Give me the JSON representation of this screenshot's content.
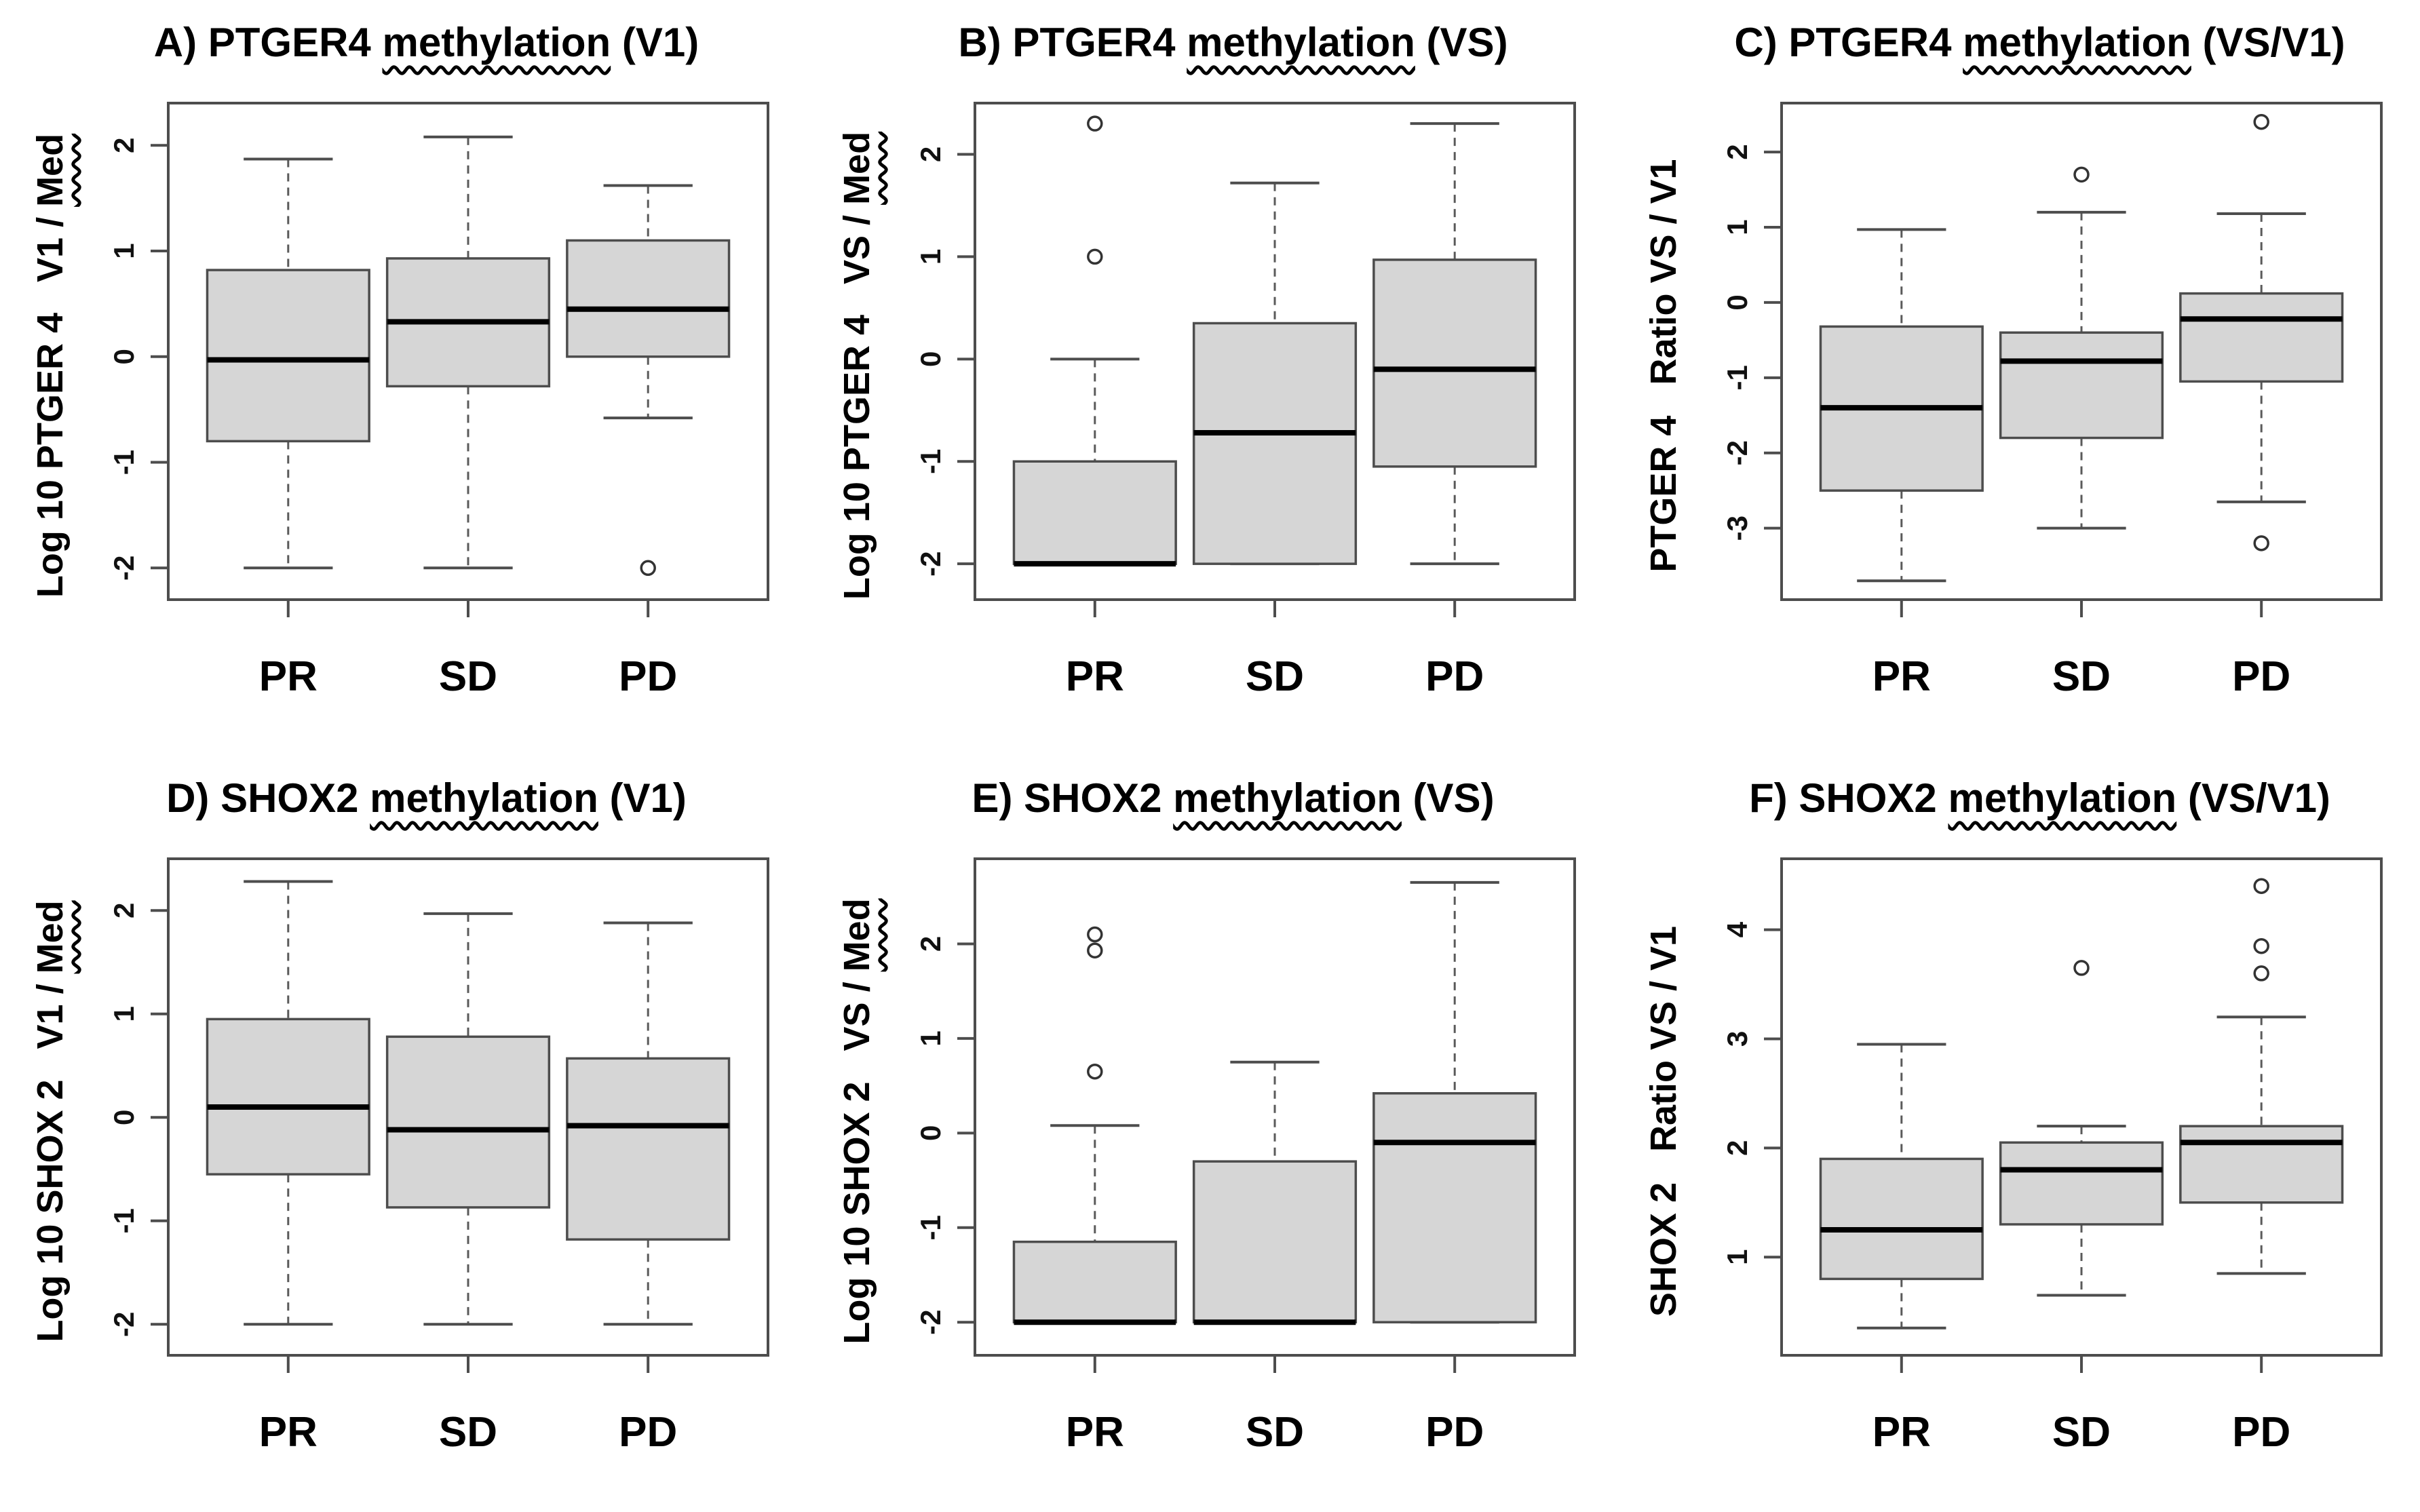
{
  "figure": {
    "type": "boxplot-grid",
    "rows": 2,
    "cols": 3,
    "background": "#ffffff",
    "colors": {
      "box_fill": "#d6d6d6",
      "box_stroke": "#4d4d4d",
      "median": "#000000",
      "whisker": "#5a5a5a",
      "frame": "#4d4d4d",
      "outlier": "#333333",
      "squiggle": "#ff0000",
      "text": "#000000"
    },
    "categories": [
      "PR",
      "SD",
      "PD"
    ]
  },
  "chart_data": [
    {
      "type": "boxplot",
      "panel": "A",
      "title": {
        "pre": "A) PTGER4 ",
        "underlined": "methylation",
        "post": " (V1)"
      },
      "ylabel": {
        "pre": "Log 10 PTGER 4   V1 / ",
        "underlined": "Med"
      },
      "yticks": [
        2,
        1,
        0,
        -1,
        -2
      ],
      "ylim": [
        -2.3,
        2.4
      ],
      "categories": [
        "PR",
        "SD",
        "PD"
      ],
      "series": [
        {
          "category": "PR",
          "whisker_low": -2.0,
          "q1": -0.8,
          "median": -0.03,
          "q3": 0.82,
          "whisker_high": 1.87,
          "outliers": []
        },
        {
          "category": "SD",
          "whisker_low": -2.0,
          "q1": -0.28,
          "median": 0.33,
          "q3": 0.93,
          "whisker_high": 2.08,
          "outliers": []
        },
        {
          "category": "PD",
          "whisker_low": -0.58,
          "q1": 0.0,
          "median": 0.45,
          "q3": 1.1,
          "whisker_high": 1.62,
          "outliers": [
            -2.0
          ]
        }
      ]
    },
    {
      "type": "boxplot",
      "panel": "B",
      "title": {
        "pre": "B) PTGER4 ",
        "underlined": "methylation",
        "post": " (VS)"
      },
      "ylabel": {
        "pre": "Log 10 PTGER 4   VS / ",
        "underlined": "Med"
      },
      "yticks": [
        2,
        1,
        0,
        -1,
        -2
      ],
      "ylim": [
        -2.35,
        2.5
      ],
      "categories": [
        "PR",
        "SD",
        "PD"
      ],
      "series": [
        {
          "category": "PR",
          "whisker_low": -2.0,
          "q1": -2.0,
          "median": -2.0,
          "q3": -1.0,
          "whisker_high": 0.0,
          "outliers": [
            2.3,
            1.0
          ]
        },
        {
          "category": "SD",
          "whisker_low": -2.0,
          "q1": -2.0,
          "median": -0.72,
          "q3": 0.35,
          "whisker_high": 1.72,
          "outliers": []
        },
        {
          "category": "PD",
          "whisker_low": -2.0,
          "q1": -1.05,
          "median": -0.1,
          "q3": 0.97,
          "whisker_high": 2.3,
          "outliers": []
        }
      ]
    },
    {
      "type": "boxplot",
      "panel": "C",
      "title": {
        "pre": "C) PTGER4 ",
        "underlined": "methylation",
        "post": " (VS/V1)"
      },
      "ylabel": {
        "pre": "PTGER 4   Ratio VS / V1",
        "underlined": ""
      },
      "yticks": [
        2,
        1,
        0,
        -1,
        -2,
        -3
      ],
      "ylim": [
        -3.95,
        2.65
      ],
      "categories": [
        "PR",
        "SD",
        "PD"
      ],
      "series": [
        {
          "category": "PR",
          "whisker_low": -3.7,
          "q1": -2.5,
          "median": -1.4,
          "q3": -0.32,
          "whisker_high": 0.97,
          "outliers": []
        },
        {
          "category": "SD",
          "whisker_low": -3.0,
          "q1": -1.8,
          "median": -0.78,
          "q3": -0.4,
          "whisker_high": 1.2,
          "outliers": [
            1.7
          ]
        },
        {
          "category": "PD",
          "whisker_low": -2.65,
          "q1": -1.05,
          "median": -0.22,
          "q3": 0.12,
          "whisker_high": 1.18,
          "outliers": [
            2.4,
            -3.2
          ]
        }
      ]
    },
    {
      "type": "boxplot",
      "panel": "D",
      "title": {
        "pre": "D) SHOX2 ",
        "underlined": "methylation",
        "post": " (V1)"
      },
      "ylabel": {
        "pre": "Log 10 SHOX 2   V1 / ",
        "underlined": "Med"
      },
      "yticks": [
        2,
        1,
        0,
        -1,
        -2
      ],
      "ylim": [
        -2.3,
        2.5
      ],
      "categories": [
        "PR",
        "SD",
        "PD"
      ],
      "series": [
        {
          "category": "PR",
          "whisker_low": -2.0,
          "q1": -0.55,
          "median": 0.1,
          "q3": 0.95,
          "whisker_high": 2.28,
          "outliers": []
        },
        {
          "category": "SD",
          "whisker_low": -2.0,
          "q1": -0.87,
          "median": -0.12,
          "q3": 0.78,
          "whisker_high": 1.97,
          "outliers": []
        },
        {
          "category": "PD",
          "whisker_low": -2.0,
          "q1": -1.18,
          "median": -0.08,
          "q3": 0.57,
          "whisker_high": 1.88,
          "outliers": []
        }
      ]
    },
    {
      "type": "boxplot",
      "panel": "E",
      "title": {
        "pre": "E) SHOX2 ",
        "underlined": "methylation",
        "post": " (VS)"
      },
      "ylabel": {
        "pre": "Log 10 SHOX 2   VS / ",
        "underlined": "Med"
      },
      "yticks": [
        2,
        1,
        0,
        -1,
        -2
      ],
      "ylim": [
        -2.35,
        2.9
      ],
      "categories": [
        "PR",
        "SD",
        "PD"
      ],
      "series": [
        {
          "category": "PR",
          "whisker_low": -2.0,
          "q1": -2.0,
          "median": -2.0,
          "q3": -1.15,
          "whisker_high": 0.08,
          "outliers": [
            2.1,
            1.93,
            0.65
          ]
        },
        {
          "category": "SD",
          "whisker_low": -2.0,
          "q1": -2.0,
          "median": -2.0,
          "q3": -0.3,
          "whisker_high": 0.75,
          "outliers": []
        },
        {
          "category": "PD",
          "whisker_low": -2.0,
          "q1": -2.0,
          "median": -0.1,
          "q3": 0.42,
          "whisker_high": 2.65,
          "outliers": []
        }
      ]
    },
    {
      "type": "boxplot",
      "panel": "F",
      "title": {
        "pre": "F) SHOX2 ",
        "underlined": "methylation",
        "post": " (VS/V1)"
      },
      "ylabel": {
        "pre": "SHOX 2   Ratio VS / V1",
        "underlined": ""
      },
      "yticks": [
        4,
        3,
        2,
        1
      ],
      "ylim": [
        0.1,
        4.65
      ],
      "categories": [
        "PR",
        "SD",
        "PD"
      ],
      "series": [
        {
          "category": "PR",
          "whisker_low": 0.35,
          "q1": 0.8,
          "median": 1.25,
          "q3": 1.9,
          "whisker_high": 2.95,
          "outliers": []
        },
        {
          "category": "SD",
          "whisker_low": 0.65,
          "q1": 1.3,
          "median": 1.8,
          "q3": 2.05,
          "whisker_high": 2.2,
          "outliers": [
            3.65
          ]
        },
        {
          "category": "PD",
          "whisker_low": 0.85,
          "q1": 1.5,
          "median": 2.05,
          "q3": 2.2,
          "whisker_high": 3.2,
          "outliers": [
            4.4,
            3.85,
            3.6
          ]
        }
      ]
    }
  ]
}
